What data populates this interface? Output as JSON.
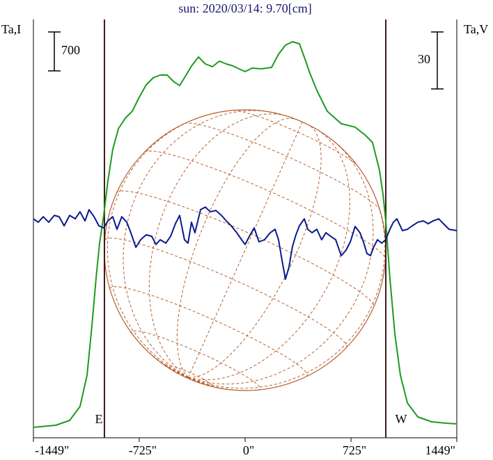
{
  "chart_data": {
    "type": "line",
    "title": "sun: 2020/03/14: 9.70[cm]",
    "xlim": [
      -1449,
      1449
    ],
    "xticks": [
      {
        "value": -1449,
        "label": "-1449\""
      },
      {
        "value": -725,
        "label": "-725\""
      },
      {
        "value": 0,
        "label": "0\""
      },
      {
        "value": 725,
        "label": "725\""
      },
      {
        "value": 1449,
        "label": "1449\""
      }
    ],
    "ylim": [
      -187.5,
      7337.5
    ],
    "y2lim": [
      -114.2,
      106.1
    ],
    "limbs": [
      {
        "label": "E",
        "x": -963
      },
      {
        "label": "W",
        "x": 963
      }
    ],
    "scale_bars": [
      {
        "label": "700",
        "value": 700
      },
      {
        "label": "30",
        "value": 30,
        "axis": "y2"
      }
    ],
    "series": [
      {
        "name": "Ta,I",
        "color": "#1e9a1e",
        "x": [
          -1449,
          -1296,
          -1201,
          -1130,
          -1082,
          -1049,
          -1020,
          -996,
          -968,
          -939,
          -906,
          -867,
          -820,
          -772,
          -725,
          -677,
          -629,
          -581,
          -534,
          -486,
          -448,
          -415,
          -367,
          -319,
          -272,
          -224,
          -176,
          -129,
          -81,
          -33,
          0,
          48,
          110,
          181,
          229,
          276,
          324,
          372,
          410,
          443,
          491,
          562,
          658,
          753,
          825,
          872,
          920,
          944,
          963,
          991,
          1025,
          1063,
          1111,
          1182,
          1277,
          1373,
          1449
        ],
        "values": [
          0,
          38,
          125,
          375,
          938,
          1813,
          2688,
          3313,
          3813,
          4438,
          5000,
          5375,
          5563,
          5688,
          5938,
          6163,
          6288,
          6338,
          6338,
          6213,
          6150,
          6288,
          6500,
          6663,
          6538,
          6488,
          6588,
          6538,
          6500,
          6438,
          6400,
          6463,
          6450,
          6475,
          6713,
          6875,
          6938,
          6900,
          6625,
          6375,
          6063,
          5688,
          5463,
          5400,
          5250,
          5125,
          4625,
          4188,
          3713,
          2688,
          1688,
          938,
          438,
          188,
          100,
          75,
          63
        ]
      },
      {
        "name": "Ta,V",
        "color": "#0a1a8c",
        "axis": "y2",
        "x": [
          -1449,
          -1416,
          -1382,
          -1344,
          -1306,
          -1273,
          -1239,
          -1201,
          -1163,
          -1130,
          -1096,
          -1068,
          -1034,
          -1001,
          -968,
          -939,
          -906,
          -877,
          -844,
          -810,
          -782,
          -748,
          -715,
          -677,
          -639,
          -610,
          -581,
          -543,
          -510,
          -477,
          -448,
          -415,
          -391,
          -367,
          -343,
          -305,
          -272,
          -238,
          -200,
          -162,
          -129,
          -95,
          -57,
          -24,
          0,
          29,
          62,
          95,
          133,
          172,
          205,
          229,
          253,
          276,
          300,
          324,
          348,
          372,
          405,
          429,
          458,
          491,
          524,
          553,
          586,
          620,
          658,
          691,
          720,
          753,
          786,
          810,
          834,
          858,
          882,
          906,
          934,
          963,
          991,
          1015,
          1039,
          1077,
          1111,
          1144,
          1182,
          1220,
          1253,
          1287,
          1325,
          1358,
          1396,
          1449
        ],
        "values": [
          1.1,
          -0.7,
          2.2,
          -0.7,
          2.9,
          2.2,
          -2.6,
          2.9,
          1.1,
          4.8,
          0,
          5.9,
          2.2,
          -2.6,
          -3.7,
          0,
          2.2,
          -4.4,
          2.2,
          -0.7,
          -6.2,
          -13.9,
          -9.9,
          -7.3,
          -8.1,
          -12.4,
          -9.9,
          -11.7,
          -8.1,
          -1.5,
          2.9,
          -9.9,
          -11.7,
          -0.7,
          -6.2,
          5.9,
          7.3,
          4.8,
          5.5,
          2.9,
          0,
          -2.6,
          -6.2,
          -9.9,
          -12.4,
          -8.1,
          -3.7,
          -11.0,
          -9.9,
          -6.2,
          -4.4,
          -9.9,
          -20.9,
          -30.7,
          -24.5,
          -13.5,
          -7.3,
          -2.6,
          1.1,
          -4.4,
          -6.2,
          -4.4,
          -9.9,
          -6.2,
          -8.1,
          -9.9,
          -18.3,
          -15.4,
          -11.0,
          -2.9,
          -6.2,
          -11.0,
          -17.2,
          -18.3,
          -13.5,
          -9.9,
          -11.7,
          -9.9,
          -4.4,
          -0.7,
          1.1,
          -5.1,
          -4.4,
          -2.6,
          -0.7,
          0,
          -1.5,
          0,
          1.1,
          -1.5,
          -4.4,
          -5.1
        ]
      }
    ]
  }
}
